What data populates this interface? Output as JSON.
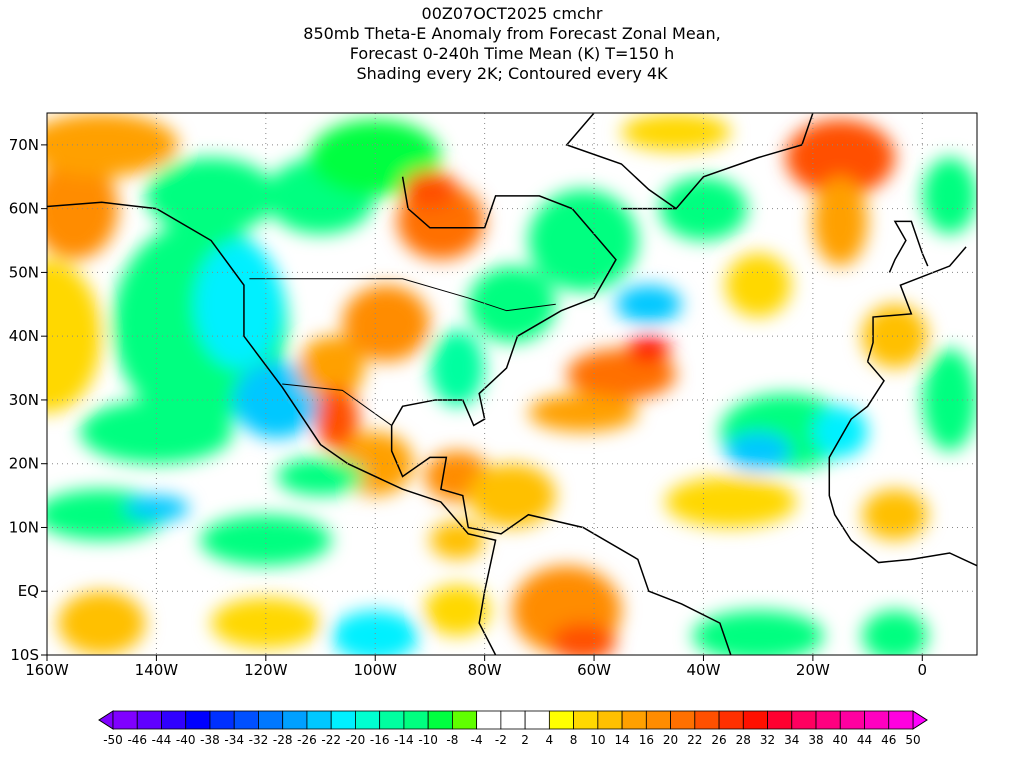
{
  "title_lines": [
    "00Z07OCT2025 cmchr",
    "850mb Theta-E Anomaly from Forecast Zonal Mean,",
    "Forecast 0-240h Time Mean (K) T=150 h",
    "Shading every 2K; Contoured every 4K"
  ],
  "map": {
    "lon_range": [
      -160,
      10
    ],
    "lat_range": [
      -10,
      75
    ],
    "x_ticks": [
      {
        "lon": -160,
        "label": "160W"
      },
      {
        "lon": -140,
        "label": "140W"
      },
      {
        "lon": -120,
        "label": "120W"
      },
      {
        "lon": -100,
        "label": "100W"
      },
      {
        "lon": -80,
        "label": "80W"
      },
      {
        "lon": -60,
        "label": "60W"
      },
      {
        "lon": -40,
        "label": "40W"
      },
      {
        "lon": -20,
        "label": "20W"
      },
      {
        "lon": 0,
        "label": "0"
      }
    ],
    "y_ticks": [
      {
        "lat": -10,
        "label": "10S"
      },
      {
        "lat": 0,
        "label": "EQ"
      },
      {
        "lat": 10,
        "label": "10N"
      },
      {
        "lat": 20,
        "label": "20N"
      },
      {
        "lat": 30,
        "label": "30N"
      },
      {
        "lat": 40,
        "label": "40N"
      },
      {
        "lat": 50,
        "label": "50N"
      },
      {
        "lat": 60,
        "label": "60N"
      },
      {
        "lat": 70,
        "label": "70N"
      }
    ]
  },
  "colorbar": {
    "labels": [
      "-50",
      "-46",
      "-44",
      "-40",
      "-38",
      "-34",
      "-32",
      "-28",
      "-26",
      "-22",
      "-20",
      "-16",
      "-14",
      "-10",
      "-8",
      "-4",
      "-2",
      "2",
      "4",
      "8",
      "10",
      "14",
      "16",
      "20",
      "22",
      "26",
      "28",
      "32",
      "34",
      "38",
      "40",
      "44",
      "46",
      "50"
    ],
    "colors": [
      "#8000ff",
      "#6000ff",
      "#3000ff",
      "#0000ff",
      "#0030ff",
      "#0050ff",
      "#0078ff",
      "#00a0ff",
      "#00c8ff",
      "#00f0ff",
      "#00ffd0",
      "#00ffa0",
      "#00ff80",
      "#00ff40",
      "#60ff00",
      "#ffffff",
      "#ffffff",
      "#ffffff",
      "#ffff00",
      "#ffd800",
      "#ffc000",
      "#ffa000",
      "#ff8c00",
      "#ff7000",
      "#ff5000",
      "#ff3000",
      "#ff1000",
      "#ff0030",
      "#ff0060",
      "#ff0080",
      "#ff00a0",
      "#ff00c0",
      "#ff00e0"
    ],
    "low_extend_color": "#8000ff",
    "high_extend_color": "#ff00ff"
  }
}
